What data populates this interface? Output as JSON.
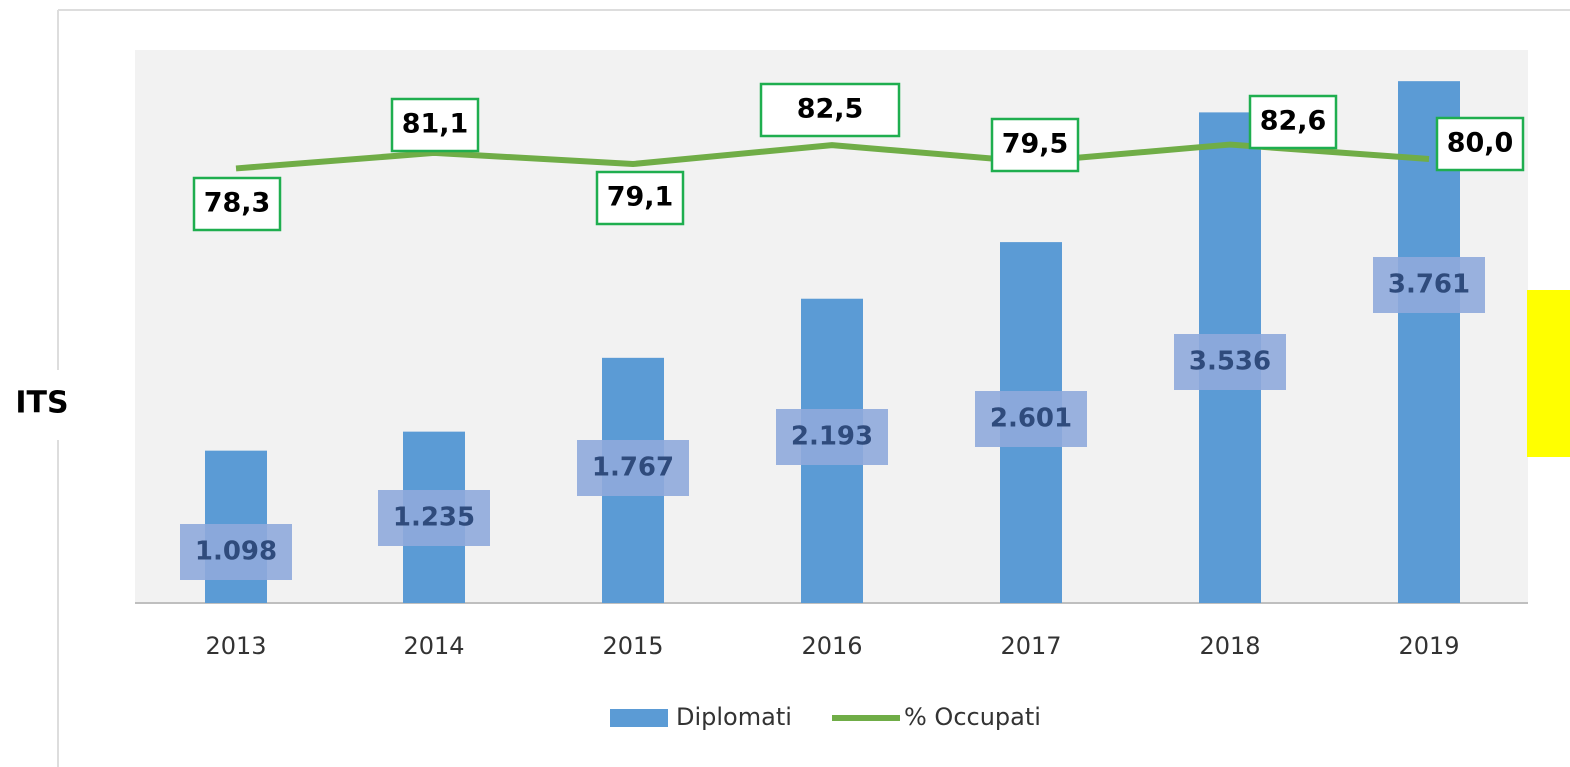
{
  "side_label": "ITS",
  "chart_data": {
    "type": "bar-line",
    "categories": [
      "2013",
      "2014",
      "2015",
      "2016",
      "2017",
      "2018",
      "2019"
    ],
    "series": [
      {
        "name": "Diplomati",
        "type": "bar",
        "color": "#5b9bd5",
        "values": [
          1098,
          1235,
          1767,
          2193,
          2601,
          3536,
          3761
        ],
        "value_labels": [
          "1.098",
          "1.235",
          "1.767",
          "2.193",
          "2.601",
          "3.536",
          "3.761"
        ]
      },
      {
        "name": "% Occupati",
        "type": "line",
        "axis": "y2",
        "color": "#70ad47",
        "values": [
          78.3,
          81.1,
          79.1,
          82.5,
          79.5,
          82.6,
          80.0
        ],
        "value_labels": [
          "78,3",
          "81,1",
          "79,1",
          "82,5",
          "79,5",
          "82,6",
          "80,0"
        ]
      }
    ],
    "ylim": [
      0,
      4000
    ],
    "y2lim": [
      0,
      100
    ]
  }
}
